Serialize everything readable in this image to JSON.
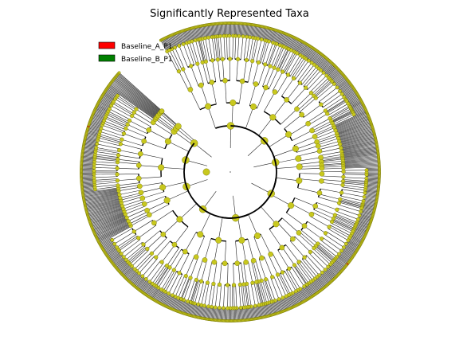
{
  "chart_data": {
    "type": "cladogram",
    "title": "Significantly Represented Taxa",
    "legend": [
      {
        "label": "Baseline_A_P1",
        "color": "#ff0000"
      },
      {
        "label": "Baseline_B_P1",
        "color": "#008000"
      }
    ],
    "node_color": "#c8c81e",
    "legend_placement": "top-left",
    "highlighted_leaves": [
      "Baseline_A_P1",
      "Baseline_A_P1"
    ]
  }
}
